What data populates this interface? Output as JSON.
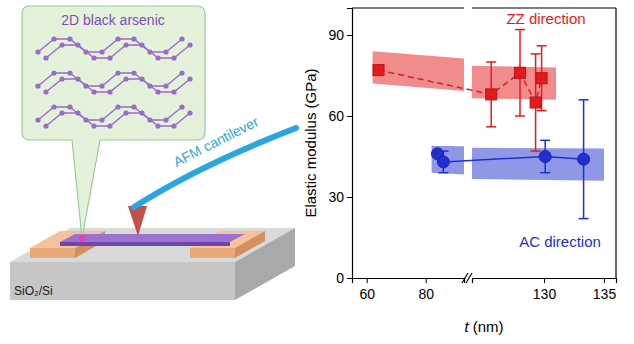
{
  "chart_data": {
    "type": "scatter",
    "x_label": "t (nm)",
    "y_label": "Elastic modulus (GPa)",
    "xlim": [
      [
        55,
        93
      ],
      [
        124,
        136
      ]
    ],
    "xticks": [
      [
        60,
        80
      ],
      [
        130,
        135
      ]
    ],
    "ylim": [
      0,
      100
    ],
    "yticks": [
      0,
      30,
      60,
      90
    ],
    "series": [
      {
        "name": "ZZ direction",
        "color": "#e41a1c",
        "marker": "square",
        "line_style": "dashed",
        "x": [
          64,
          125.6,
          128,
          129.3,
          129.8
        ],
        "values": [
          77,
          68,
          76,
          65,
          74
        ],
        "errors": [
          null,
          12,
          16,
          18,
          12
        ],
        "band": {
          "x": [
            62,
            131
          ],
          "lower": [
            72,
            66
          ],
          "upper": [
            84,
            78
          ]
        }
      },
      {
        "name": "AC direction",
        "color": "#1f2fd0",
        "marker": "circle",
        "line_style": "solid",
        "x": [
          84,
          86,
          130.1,
          133.3
        ],
        "values": [
          46,
          43,
          45,
          44
        ],
        "errors": [
          null,
          4,
          6,
          22
        ],
        "band": {
          "x": [
            82,
            135
          ],
          "lower": [
            39,
            36
          ],
          "upper": [
            49,
            48
          ]
        }
      }
    ]
  },
  "diagram": {
    "bubble_label": "2D black arsenic",
    "cantilever_label": "AFM cantilever",
    "substrate_label": "SiO₂/Si"
  }
}
